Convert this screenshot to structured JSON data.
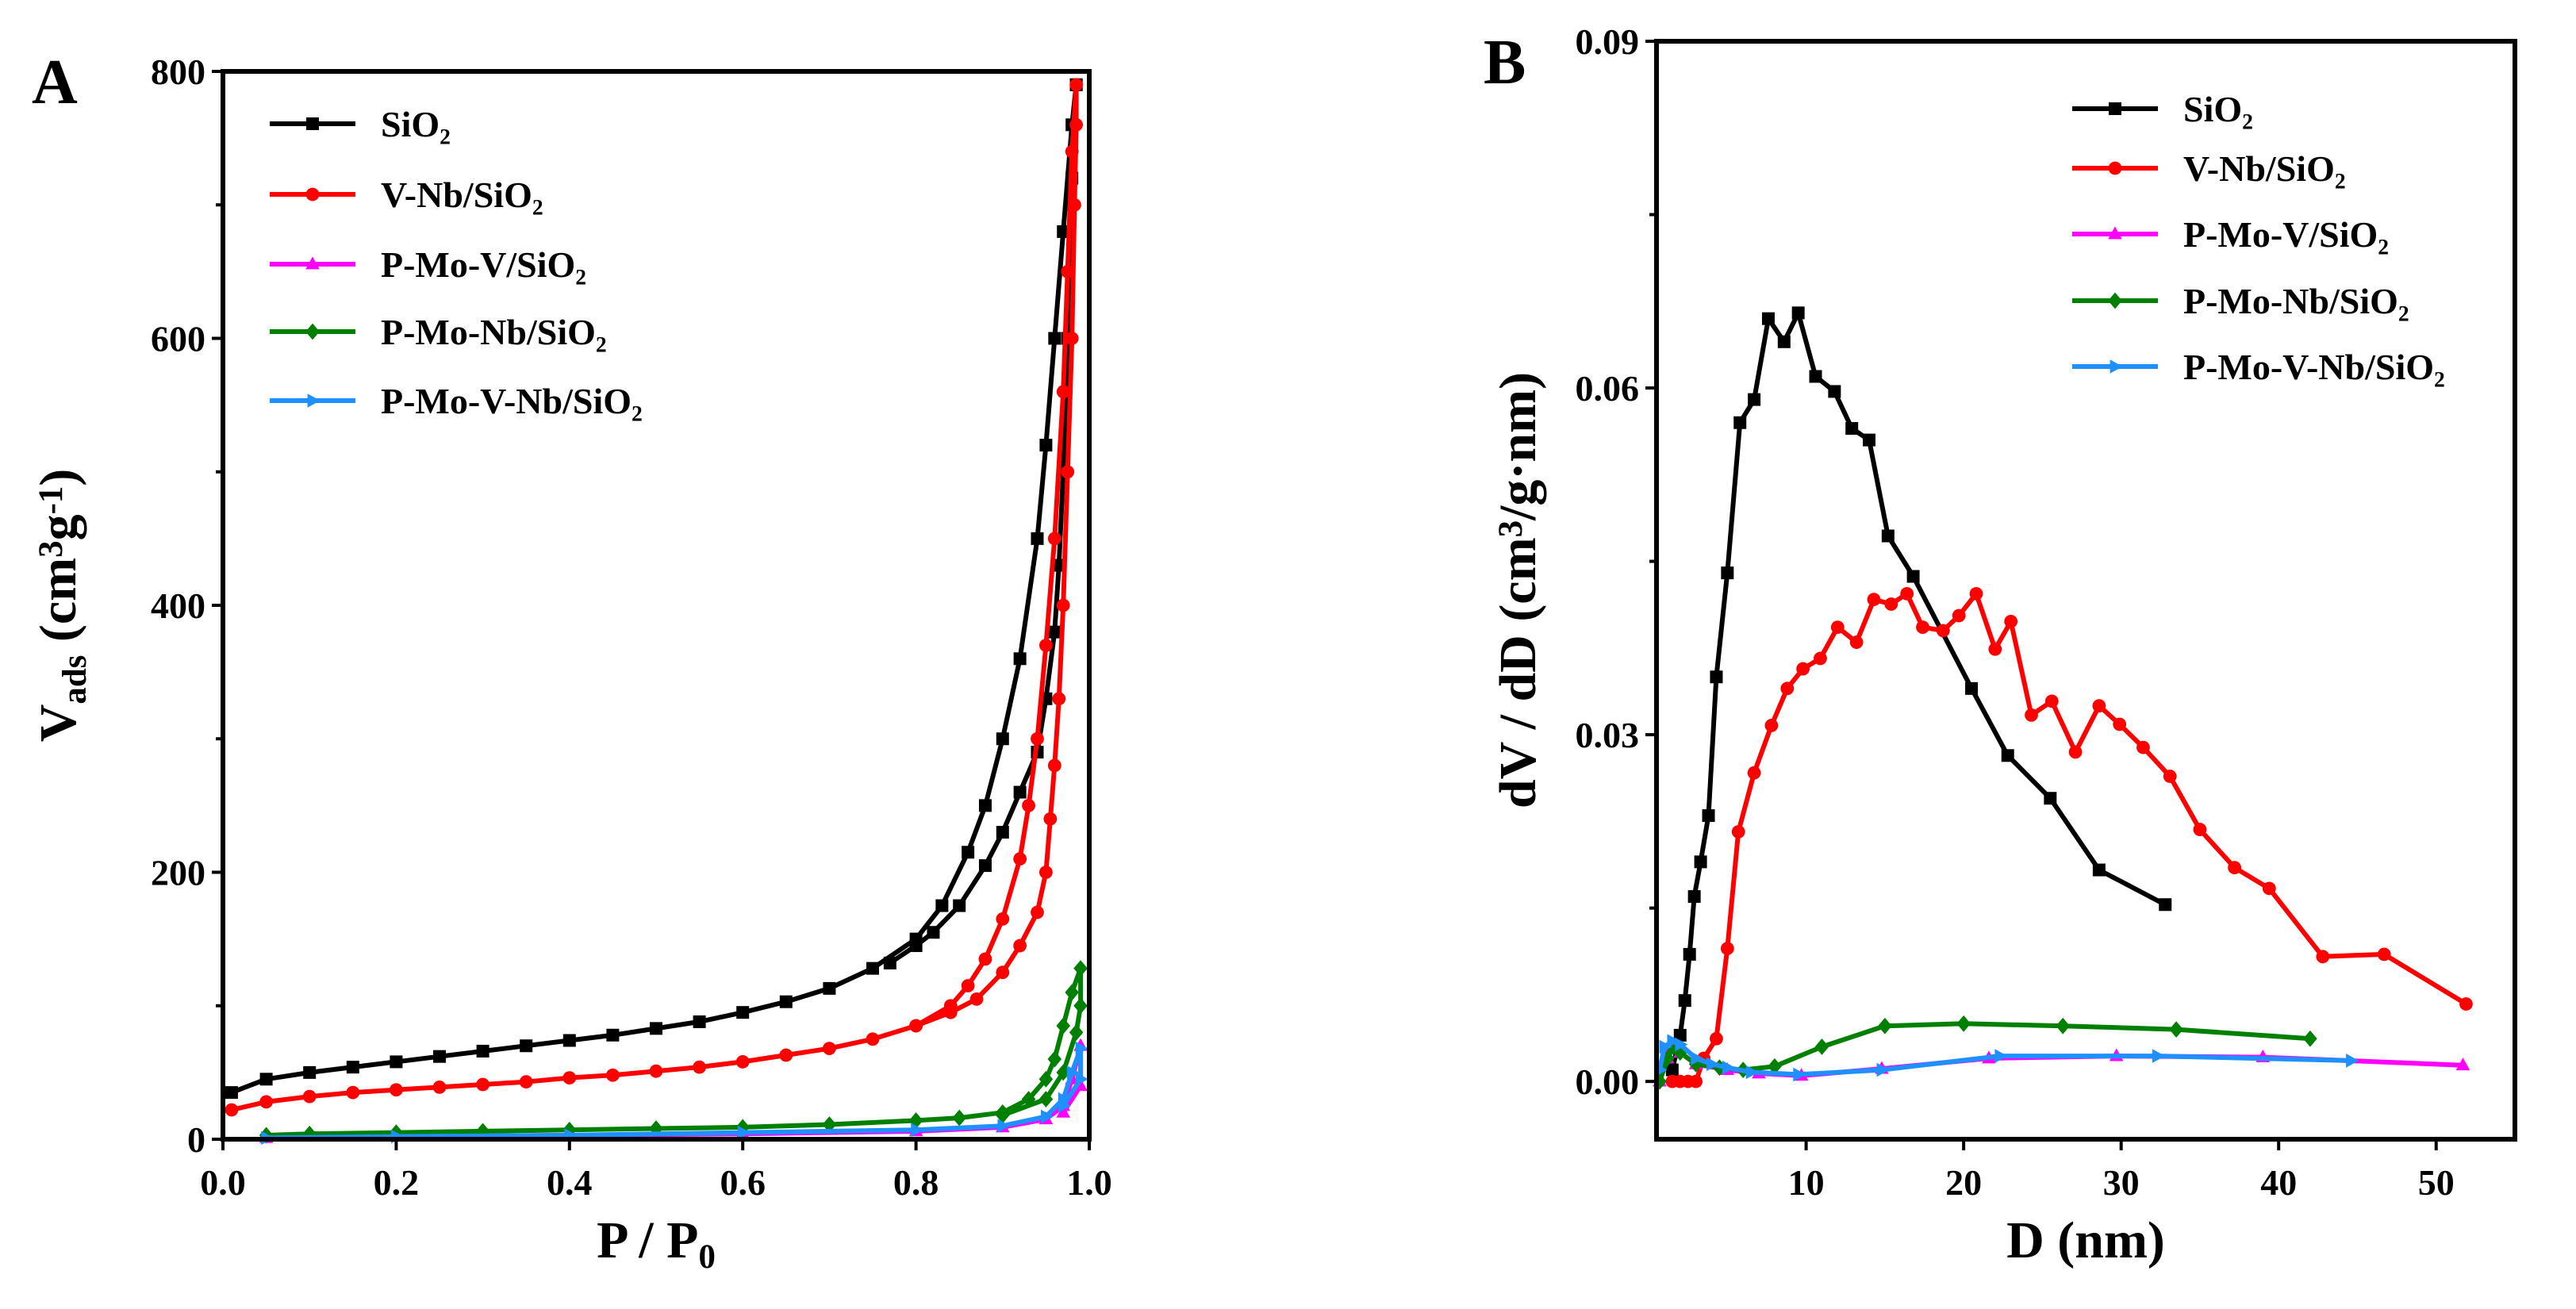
{
  "chart_data": [
    {
      "panel": "A",
      "type": "line",
      "xlabel": [
        [
          "P / P",
          ""
        ],
        [
          "0",
          "sub"
        ]
      ],
      "ylabel": [
        [
          "V",
          ""
        ],
        [
          "ads",
          "sub"
        ],
        [
          " (cm",
          ""
        ],
        [
          "3",
          "sup"
        ],
        [
          "g",
          ""
        ],
        [
          "-1",
          "sup"
        ],
        [
          ")",
          ""
        ]
      ],
      "xlim": [
        0,
        1.0
      ],
      "ylim": [
        0,
        800
      ],
      "xticks": [
        0.0,
        0.2,
        0.4,
        0.6,
        0.8,
        1.0
      ],
      "xtick_labels": [
        "0.0",
        "0.2",
        "0.4",
        "0.6",
        "0.8",
        "1.0"
      ],
      "yticks": [
        0,
        200,
        400,
        600,
        800
      ],
      "ytick_labels": [
        "0",
        "200",
        "400",
        "600",
        "800"
      ],
      "yminor": [
        100,
        300,
        500,
        700
      ],
      "legend_placement": "top-left",
      "series": [
        {
          "name": "SiO₂",
          "color": "#000000",
          "marker": "square",
          "x": [
            0.01,
            0.05,
            0.1,
            0.15,
            0.2,
            0.25,
            0.3,
            0.35,
            0.4,
            0.45,
            0.5,
            0.55,
            0.6,
            0.65,
            0.7,
            0.75,
            0.8,
            0.83,
            0.86,
            0.88,
            0.9,
            0.92,
            0.94,
            0.95,
            0.96,
            0.97,
            0.98,
            0.985,
            0.985,
            0.98,
            0.975,
            0.97,
            0.965,
            0.96,
            0.95,
            0.94,
            0.92,
            0.9,
            0.88,
            0.85,
            0.82,
            0.8,
            0.77
          ],
          "y": [
            35,
            45,
            50,
            54,
            58,
            62,
            66,
            70,
            74,
            78,
            83,
            88,
            95,
            103,
            113,
            128,
            150,
            175,
            215,
            250,
            300,
            360,
            450,
            520,
            600,
            680,
            760,
            790,
            790,
            720,
            600,
            500,
            430,
            380,
            330,
            290,
            260,
            230,
            205,
            175,
            155,
            145,
            132
          ]
        },
        {
          "name": "V-Nb/SiO₂",
          "color": "#ff0000",
          "marker": "circle",
          "x": [
            0.01,
            0.05,
            0.1,
            0.15,
            0.2,
            0.25,
            0.3,
            0.35,
            0.4,
            0.45,
            0.5,
            0.55,
            0.6,
            0.65,
            0.7,
            0.75,
            0.8,
            0.84,
            0.86,
            0.88,
            0.9,
            0.92,
            0.93,
            0.94,
            0.95,
            0.96,
            0.97,
            0.975,
            0.98,
            0.985,
            0.985,
            0.983,
            0.98,
            0.975,
            0.97,
            0.965,
            0.96,
            0.955,
            0.95,
            0.94,
            0.92,
            0.9,
            0.87,
            0.84,
            0.8
          ],
          "y": [
            22,
            28,
            32,
            35,
            37,
            39,
            41,
            43,
            46,
            48,
            51,
            54,
            58,
            63,
            68,
            75,
            85,
            100,
            115,
            135,
            165,
            210,
            250,
            300,
            370,
            450,
            560,
            650,
            740,
            790,
            760,
            700,
            600,
            500,
            400,
            330,
            280,
            240,
            200,
            170,
            145,
            125,
            105,
            95,
            85
          ]
        },
        {
          "name": "P-Mo-V/SiO₂",
          "color": "#ff00ff",
          "marker": "triangle-up",
          "x": [
            0.05,
            0.2,
            0.4,
            0.6,
            0.8,
            0.9,
            0.95,
            0.97,
            0.98,
            0.99,
            0.99,
            0.97
          ],
          "y": [
            1,
            2,
            3,
            4,
            6,
            9,
            15,
            25,
            45,
            70,
            40,
            20
          ]
        },
        {
          "name": "P-Mo-Nb/SiO₂",
          "color": "#008000",
          "marker": "diamond",
          "x": [
            0.05,
            0.1,
            0.2,
            0.3,
            0.4,
            0.5,
            0.6,
            0.7,
            0.8,
            0.85,
            0.9,
            0.93,
            0.95,
            0.96,
            0.97,
            0.98,
            0.99,
            0.99,
            0.985,
            0.97,
            0.95,
            0.9
          ],
          "y": [
            3,
            4,
            5,
            6,
            7,
            8,
            9,
            11,
            14,
            16,
            20,
            30,
            45,
            60,
            85,
            110,
            128,
            100,
            80,
            50,
            30,
            18
          ]
        },
        {
          "name": "P-Mo-V-Nb/SiO₂",
          "color": "#1e90ff",
          "marker": "triangle-right",
          "x": [
            0.05,
            0.2,
            0.4,
            0.6,
            0.8,
            0.9,
            0.95,
            0.97,
            0.98,
            0.99,
            0.99,
            0.97
          ],
          "y": [
            1,
            2,
            3,
            5,
            7,
            10,
            17,
            30,
            50,
            68,
            45,
            25
          ]
        }
      ]
    },
    {
      "panel": "B",
      "type": "line",
      "xlabel": [
        [
          "D (nm)",
          ""
        ]
      ],
      "ylabel": [
        [
          "dV / dD (cm",
          ""
        ],
        [
          "3",
          "sup"
        ],
        [
          "/g·nm)",
          ""
        ]
      ],
      "xlim": [
        0.5,
        55
      ],
      "ylim": [
        -0.005,
        0.09
      ],
      "xticks": [
        10,
        20,
        30,
        40,
        50
      ],
      "xtick_labels": [
        "10",
        "20",
        "30",
        "40",
        "50"
      ],
      "yticks": [
        0,
        0.03,
        0.06,
        0.09
      ],
      "ytick_labels": [
        "0.00",
        "0.03",
        "0.06",
        "0.09"
      ],
      "yminor": [
        0.015,
        0.045,
        0.075
      ],
      "legend_placement": "top-right",
      "series": [
        {
          "name": "SiO₂",
          "color": "#000000",
          "marker": "square",
          "x": [
            1.5,
            2,
            2.3,
            2.6,
            2.9,
            3.3,
            3.8,
            4.3,
            5,
            5.8,
            6.7,
            7.6,
            8.6,
            9.5,
            10.6,
            11.8,
            12.9,
            14,
            15.2,
            16.8,
            20.5,
            22.8,
            25.5,
            28.6,
            32.8
          ],
          "y": [
            0.001,
            0.004,
            0.007,
            0.011,
            0.016,
            0.019,
            0.023,
            0.035,
            0.044,
            0.057,
            0.059,
            0.066,
            0.064,
            0.0665,
            0.061,
            0.0597,
            0.0565,
            0.0555,
            0.0472,
            0.0437,
            0.034,
            0.0282,
            0.0245,
            0.0183,
            0.0153
          ]
        },
        {
          "name": "V-Nb/SiO₂",
          "color": "#ff0000",
          "marker": "circle",
          "x": [
            1.5,
            2,
            2.5,
            3,
            3.5,
            4.3,
            5,
            5.7,
            6.7,
            7.8,
            8.8,
            9.8,
            10.9,
            12,
            13.2,
            14.3,
            15.4,
            16.4,
            17.4,
            18.7,
            19.7,
            20.8,
            22,
            23,
            24.3,
            25.6,
            27.1,
            28.6,
            29.9,
            31.4,
            33.1,
            35,
            37.2,
            39.4,
            42.8,
            46.7,
            51.9
          ],
          "y": [
            0,
            0,
            0,
            0,
            0.002,
            0.0037,
            0.0115,
            0.0216,
            0.0267,
            0.0308,
            0.034,
            0.0357,
            0.0366,
            0.0393,
            0.038,
            0.0417,
            0.0413,
            0.0422,
            0.0393,
            0.039,
            0.0403,
            0.0422,
            0.0374,
            0.0398,
            0.0317,
            0.0329,
            0.0285,
            0.0325,
            0.0309,
            0.0289,
            0.0264,
            0.0218,
            0.0185,
            0.0167,
            0.0108,
            0.011,
            0.0067
          ]
        },
        {
          "name": "P-Mo-V/SiO₂",
          "color": "#ff00ff",
          "marker": "triangle-up",
          "x": [
            0.7,
            1.2,
            1.5,
            2,
            3,
            5,
            7,
            9.7,
            14.8,
            21.6,
            29.7,
            39,
            51.7
          ],
          "y": [
            0,
            0.002,
            0.003,
            0.0025,
            0.0015,
            0.001,
            0.0007,
            0.0005,
            0.0011,
            0.002,
            0.0022,
            0.0021,
            0.0014
          ]
        },
        {
          "name": "P-Mo-Nb/SiO₂",
          "color": "#008000",
          "marker": "diamond",
          "x": [
            0.7,
            1.2,
            1.5,
            2,
            3,
            4.5,
            6,
            8,
            11,
            15,
            20,
            26.3,
            33.5,
            42
          ],
          "y": [
            0,
            0.002,
            0.003,
            0.0025,
            0.0015,
            0.0012,
            0.001,
            0.0013,
            0.003,
            0.0048,
            0.005,
            0.0048,
            0.0045,
            0.0037
          ]
        },
        {
          "name": "P-Mo-V-Nb/SiO₂",
          "color": "#1e90ff",
          "marker": "triangle-right",
          "x": [
            0.7,
            1,
            1.5,
            2,
            3,
            4,
            5,
            6.5,
            9.5,
            14.8,
            22.3,
            32.3,
            44.6
          ],
          "y": [
            0.001,
            0.003,
            0.0035,
            0.0032,
            0.002,
            0.0015,
            0.0012,
            0.0008,
            0.0006,
            0.001,
            0.0022,
            0.0022,
            0.0018
          ]
        }
      ]
    }
  ]
}
